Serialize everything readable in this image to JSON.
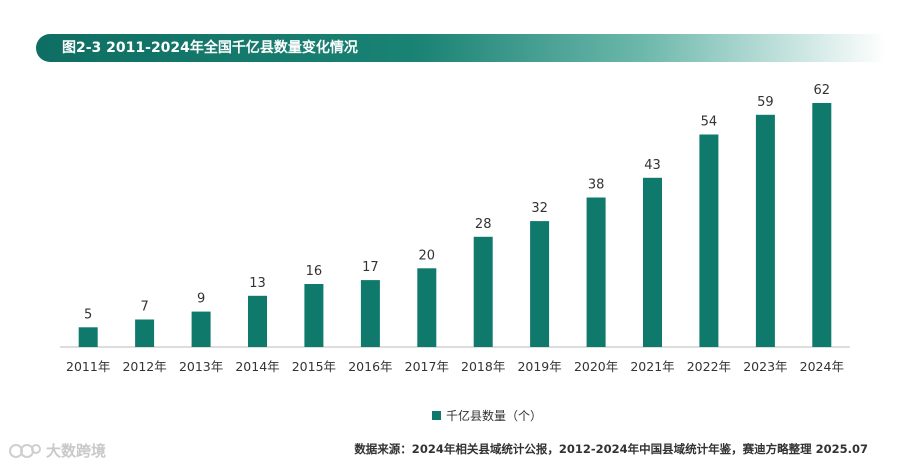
{
  "title": "图2-3 2011-2024年全国千亿县数量变化情况",
  "source": "数据来源：2024年相关县域统计公报，2012-2024年中国县域统计年鉴，赛迪方略整理 2025.07",
  "watermark": {
    "text": "大数跨境",
    "icon": "watermark-logo-icon"
  },
  "colors": {
    "bar": "#0f7a6c",
    "title_start": "#0f6e63",
    "text": "#333333",
    "axis": "#bbbbbb"
  },
  "chart_data": {
    "type": "bar",
    "categories": [
      "2011年",
      "2012年",
      "2013年",
      "2014年",
      "2015年",
      "2016年",
      "2017年",
      "2018年",
      "2019年",
      "2020年",
      "2021年",
      "2022年",
      "2023年",
      "2024年"
    ],
    "series": [
      {
        "name": "千亿县数量（个）",
        "values": [
          5,
          7,
          9,
          13,
          16,
          17,
          20,
          28,
          32,
          38,
          43,
          54,
          59,
          62
        ]
      }
    ],
    "data_labels": true,
    "legend_position": "bottom-center",
    "ylim": [
      0,
      62
    ],
    "grid": false
  }
}
